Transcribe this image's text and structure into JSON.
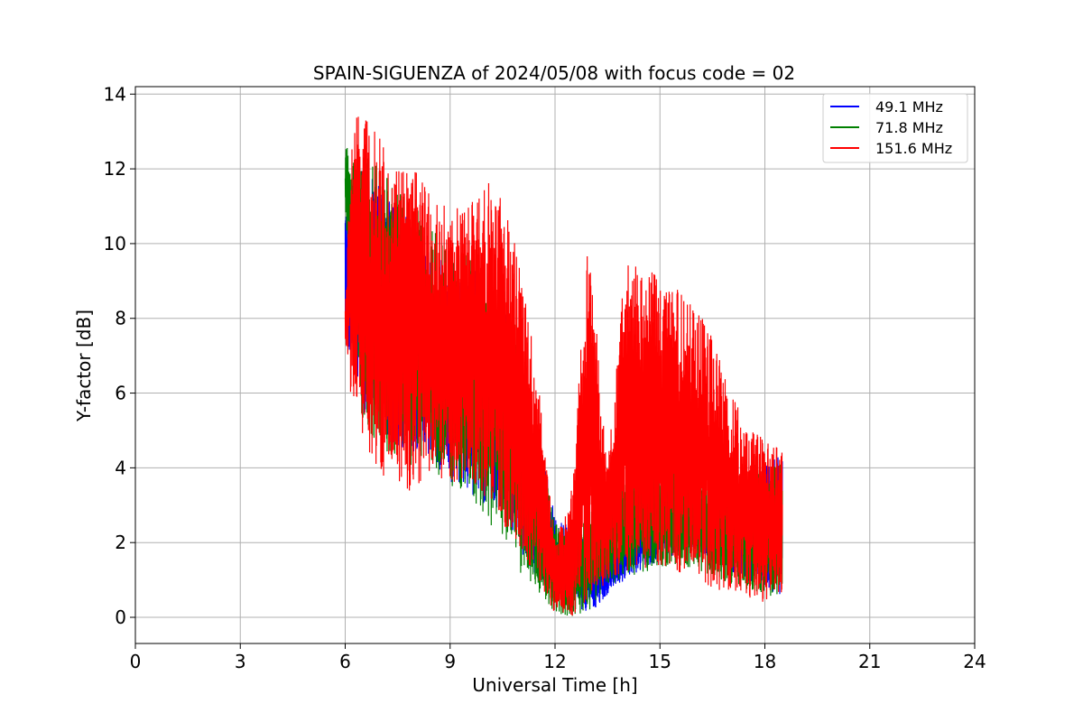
{
  "chart_data": {
    "type": "line",
    "title": "SPAIN-SIGUENZA of 2024/05/08 with focus code = 02",
    "xlabel": "Universal Time [h]",
    "ylabel": "Y-factor [dB]",
    "xlim": [
      0,
      24
    ],
    "ylim": [
      -0.7,
      14.2
    ],
    "x_ticks": [
      0,
      3,
      6,
      9,
      12,
      15,
      18,
      21,
      24
    ],
    "y_ticks": [
      0,
      2,
      4,
      6,
      8,
      10,
      12,
      14
    ],
    "grid": true,
    "legend_position": "top-right",
    "series": [
      {
        "name": "  49.1 MHz",
        "color": "#0000ff",
        "envelope": {
          "x": [
            6.0,
            6.5,
            7.0,
            7.5,
            8.0,
            8.5,
            9.0,
            9.5,
            10.0,
            10.5,
            11.0,
            11.5,
            12.0,
            12.5,
            13.0,
            13.5,
            14.0,
            14.5,
            15.0,
            15.5,
            16.0,
            16.5,
            17.0,
            17.5,
            18.0,
            18.5
          ],
          "upper": [
            11.0,
            12.0,
            11.5,
            11.0,
            10.5,
            10.0,
            9.5,
            9.5,
            9.0,
            8.5,
            7.0,
            5.0,
            2.7,
            2.4,
            2.0,
            1.8,
            2.2,
            2.6,
            2.8,
            3.0,
            3.2,
            3.4,
            3.6,
            3.8,
            4.2,
            4.4
          ],
          "lower": [
            7.5,
            5.5,
            4.8,
            4.6,
            4.4,
            3.8,
            3.5,
            3.4,
            3.0,
            2.5,
            1.8,
            1.0,
            0.5,
            0.3,
            0.1,
            0.6,
            1.0,
            1.3,
            1.5,
            1.7,
            1.8,
            1.5,
            1.2,
            0.9,
            0.7,
            0.6
          ]
        }
      },
      {
        "name": "  71.8 MHz",
        "color": "#008000",
        "envelope": {
          "x": [
            6.0,
            6.5,
            7.0,
            7.5,
            8.0,
            8.5,
            9.0,
            9.5,
            10.0,
            10.5,
            11.0,
            11.5,
            12.0,
            12.5,
            13.0,
            13.5,
            14.0,
            14.5,
            15.0,
            15.5,
            16.0,
            16.5,
            17.0,
            17.5,
            18.0,
            18.5
          ],
          "upper": [
            12.6,
            12.4,
            12.0,
            11.5,
            11.0,
            10.5,
            10.0,
            9.8,
            9.5,
            9.0,
            7.5,
            5.0,
            2.5,
            2.4,
            3.0,
            3.6,
            4.0,
            4.2,
            4.1,
            4.0,
            3.9,
            3.8,
            3.8,
            3.9,
            4.0,
            4.2
          ],
          "lower": [
            10.5,
            5.0,
            4.5,
            4.2,
            4.0,
            3.8,
            3.5,
            3.2,
            2.6,
            2.0,
            1.2,
            0.6,
            0.1,
            0.0,
            0.2,
            0.8,
            1.0,
            1.2,
            1.3,
            1.4,
            1.3,
            1.1,
            0.9,
            0.7,
            0.6,
            0.5
          ]
        }
      },
      {
        "name": "151.6 MHz",
        "color": "#ff0000",
        "envelope": {
          "x": [
            6.0,
            6.2,
            6.5,
            7.0,
            7.5,
            8.0,
            8.5,
            9.0,
            9.5,
            10.0,
            10.5,
            11.0,
            11.5,
            12.0,
            12.5,
            12.8,
            13.0,
            13.5,
            14.0,
            14.5,
            15.0,
            15.5,
            16.0,
            16.5,
            17.0,
            17.5,
            18.0,
            18.5
          ],
          "upper": [
            8.5,
            13.3,
            13.5,
            12.8,
            12.2,
            12.0,
            11.2,
            11.0,
            11.0,
            11.8,
            11.2,
            9.5,
            6.5,
            2.0,
            3.5,
            9.0,
            10.1,
            4.0,
            9.4,
            9.6,
            9.2,
            8.8,
            8.5,
            7.5,
            6.0,
            5.2,
            4.8,
            4.5
          ],
          "lower": [
            7.2,
            5.5,
            4.5,
            3.8,
            3.0,
            3.5,
            3.8,
            3.6,
            3.5,
            3.2,
            2.5,
            1.8,
            1.0,
            0.1,
            0.0,
            0.2,
            0.5,
            0.9,
            1.2,
            1.3,
            1.4,
            1.2,
            1.0,
            0.8,
            0.6,
            0.5,
            0.4,
            0.6
          ]
        }
      }
    ]
  }
}
